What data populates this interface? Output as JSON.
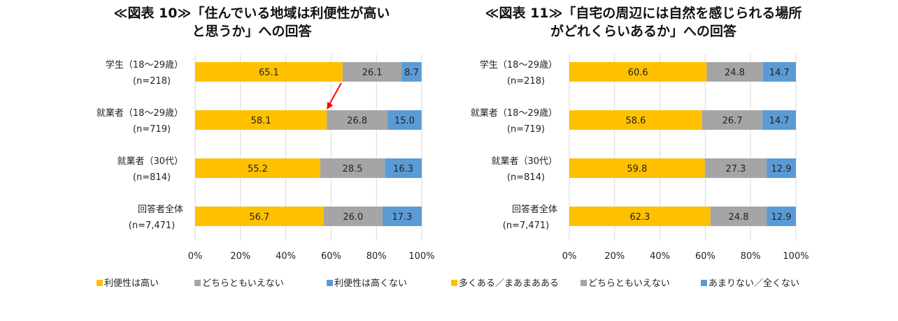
{
  "chart_data": [
    {
      "type": "bar",
      "orientation": "horizontal",
      "stacked": true,
      "title_line1": "≪図表 10≫「住んでいる地域は利便性が高い",
      "title_line2": "と思うか」への回答",
      "categories": [
        {
          "label": "学生（18〜29歳）",
          "n": "(n=218)"
        },
        {
          "label": "就業者（18〜29歳）",
          "n": "(n=719)"
        },
        {
          "label": "就業者（30代）",
          "n": "(n=814)"
        },
        {
          "label": "回答者全体",
          "n": "(n=7,471)"
        }
      ],
      "series": [
        {
          "name": "利便性は高い",
          "color": "#FFC000",
          "values": [
            65.1,
            58.1,
            55.2,
            56.7
          ]
        },
        {
          "name": "どちらともいえない",
          "color": "#A5A5A5",
          "values": [
            26.1,
            26.8,
            28.5,
            26.0
          ]
        },
        {
          "name": "利便性は高くない",
          "color": "#5B9BD5",
          "values": [
            8.7,
            15.0,
            16.3,
            17.3
          ]
        }
      ],
      "xlim": [
        0,
        100
      ],
      "xticks": [
        "0%",
        "20%",
        "40%",
        "60%",
        "80%",
        "100%"
      ],
      "grid": true,
      "legend": "bottom",
      "annotation": {
        "type": "arrow",
        "color": "#FF0000",
        "from_category": 0,
        "to_category": 1
      }
    },
    {
      "type": "bar",
      "orientation": "horizontal",
      "stacked": true,
      "title_line1": "≪図表 11≫「自宅の周辺には自然を感じられる場所",
      "title_line2": "がどれくらいあるか」への回答",
      "categories": [
        {
          "label": "学生（18〜29歳）",
          "n": "(n=218)"
        },
        {
          "label": "就業者（18〜29歳）",
          "n": "(n=719)"
        },
        {
          "label": "就業者（30代）",
          "n": "(n=814)"
        },
        {
          "label": "回答者全体",
          "n": "(n=7,471)"
        }
      ],
      "series": [
        {
          "name": "多くある／まあまあある",
          "color": "#FFC000",
          "values": [
            60.6,
            58.6,
            59.8,
            62.3
          ]
        },
        {
          "name": "どちらともいえない",
          "color": "#A5A5A5",
          "values": [
            24.8,
            26.7,
            27.3,
            24.8
          ]
        },
        {
          "name": "あまりない／全くない",
          "color": "#5B9BD5",
          "values": [
            14.7,
            14.7,
            12.9,
            12.9
          ]
        }
      ],
      "xlim": [
        0,
        100
      ],
      "xticks": [
        "0%",
        "20%",
        "40%",
        "60%",
        "80%",
        "100%"
      ],
      "grid": true,
      "legend": "bottom"
    }
  ]
}
